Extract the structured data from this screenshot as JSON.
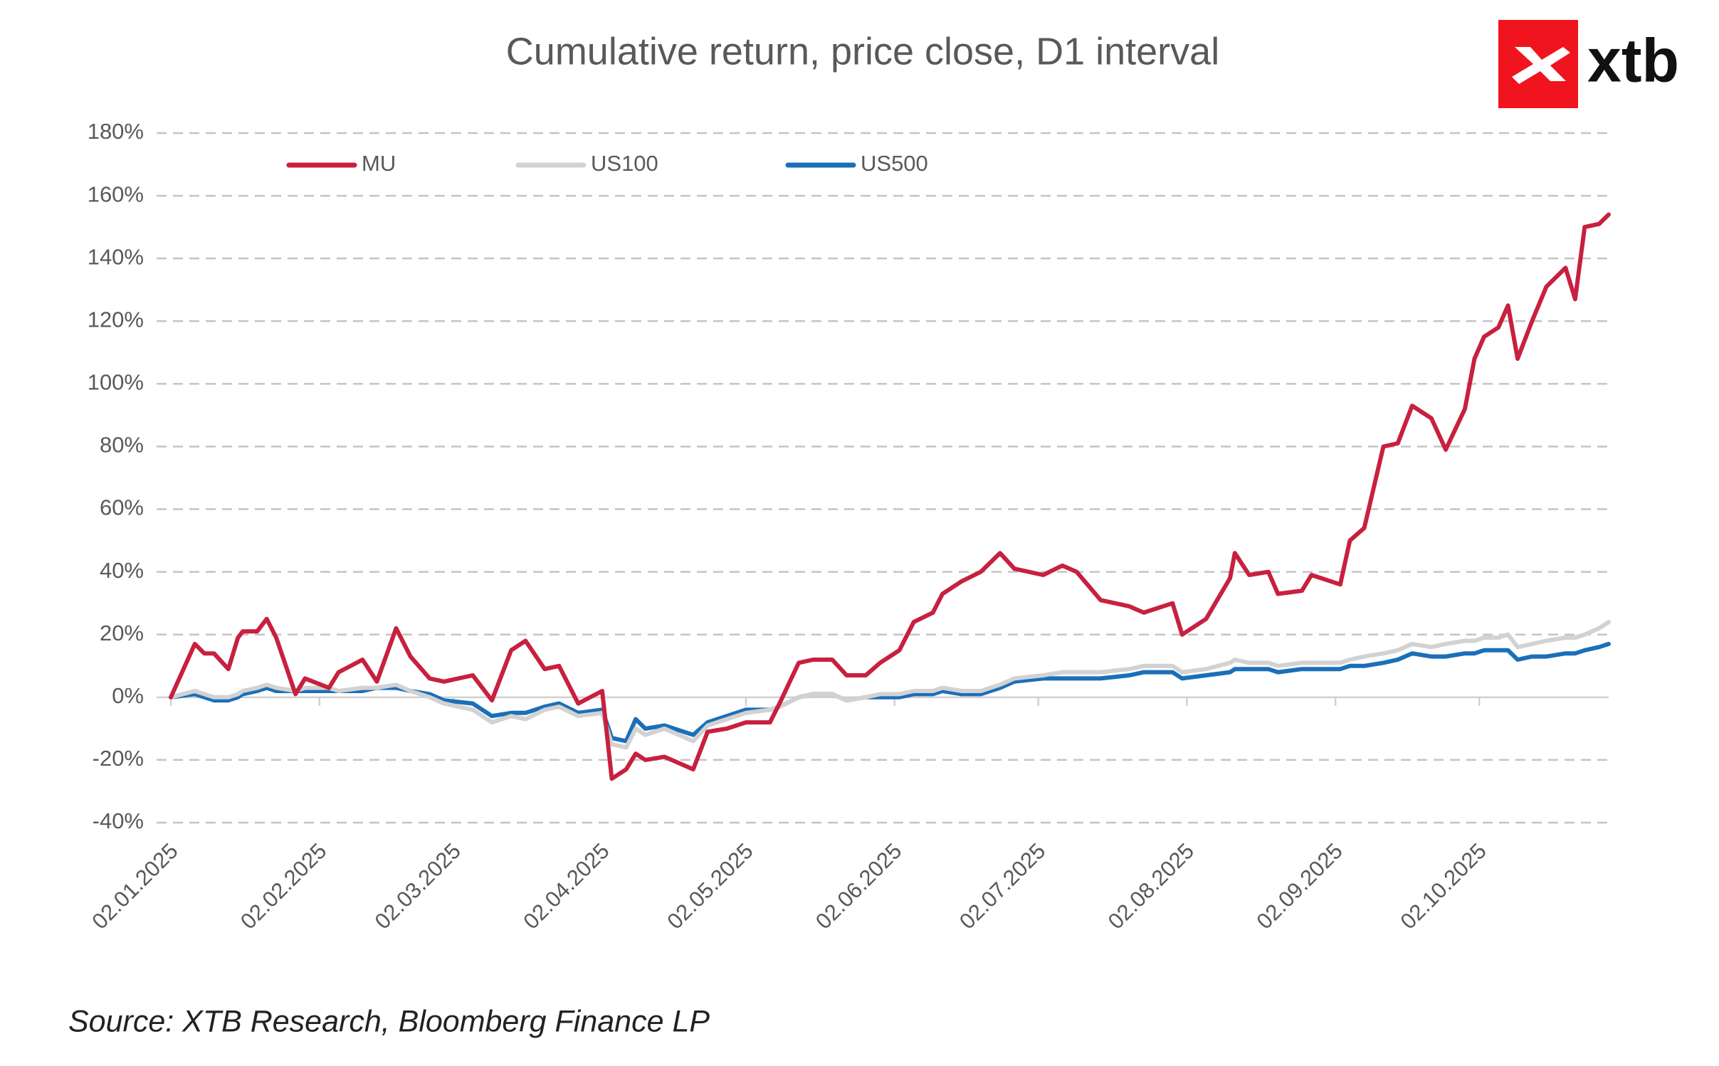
{
  "logo": "xtb",
  "chart_data": {
    "type": "line",
    "title": "Cumulative return, price close, D1 interval",
    "source": "Source: XTB Research, Bloomberg Finance LP",
    "x": [
      "02.01.2025",
      "07.01.2025",
      "09.01.2025",
      "11.01.2025",
      "14.01.2025",
      "16.01.2025",
      "17.01.2025",
      "20.01.2025",
      "22.01.2025",
      "24.01.2025",
      "28.01.2025",
      "30.01.2025",
      "04.02.2025",
      "06.02.2025",
      "11.02.2025",
      "14.02.2025",
      "18.02.2025",
      "21.02.2025",
      "25.02.2025",
      "28.02.2025",
      "06.03.2025",
      "10.03.2025",
      "14.03.2025",
      "17.03.2025",
      "21.03.2025",
      "24.03.2025",
      "28.03.2025",
      "02.04.2025",
      "04.04.2025",
      "07.04.2025",
      "09.04.2025",
      "11.04.2025",
      "15.04.2025",
      "21.04.2025",
      "24.04.2025",
      "28.04.2025",
      "02.05.2025",
      "07.05.2025",
      "09.05.2025",
      "13.05.2025",
      "16.05.2025",
      "20.05.2025",
      "23.05.2025",
      "27.05.2025",
      "30.05.2025",
      "03.06.2025",
      "06.06.2025",
      "10.06.2025",
      "12.06.2025",
      "16.06.2025",
      "20.06.2025",
      "24.06.2025",
      "27.06.2025",
      "03.07.2025",
      "07.07.2025",
      "10.07.2025",
      "15.07.2025",
      "21.07.2025",
      "24.07.2025",
      "30.07.2025",
      "01.08.2025",
      "06.08.2025",
      "11.08.2025",
      "12.08.2025",
      "15.08.2025",
      "19.08.2025",
      "21.08.2025",
      "26.08.2025",
      "28.08.2025",
      "03.09.2025",
      "05.09.2025",
      "08.09.2025",
      "12.09.2025",
      "15.09.2025",
      "18.09.2025",
      "22.09.2025",
      "25.09.2025",
      "29.09.2025",
      "01.10.2025",
      "03.10.2025",
      "06.10.2025",
      "08.10.2025",
      "10.10.2025",
      "13.10.2025",
      "16.10.2025",
      "20.10.2025",
      "22.10.2025",
      "24.10.2025",
      "27.10.2025",
      "29.10.2025"
    ],
    "series": [
      {
        "name": "MU",
        "color": "#c8203f",
        "values": [
          0,
          17,
          14,
          14,
          9,
          19,
          21,
          21,
          25,
          19,
          1,
          6,
          3,
          8,
          12,
          5,
          22,
          13,
          6,
          5,
          7,
          -1,
          15,
          18,
          9,
          10,
          -2,
          2,
          -26,
          -23,
          -18,
          -20,
          -19,
          -23,
          -11,
          -10,
          -8,
          -8,
          -2,
          11,
          12,
          12,
          7,
          7,
          11,
          15,
          24,
          27,
          33,
          37,
          40,
          46,
          41,
          39,
          42,
          40,
          31,
          29,
          27,
          30,
          20,
          25,
          38,
          46,
          39,
          40,
          33,
          34,
          39,
          36,
          50,
          54,
          80,
          81,
          93,
          89,
          79,
          92,
          108,
          115,
          118,
          125,
          108,
          120,
          131,
          137,
          127,
          150,
          151,
          154
        ]
      },
      {
        "name": "US100",
        "color": "#d2d2d2",
        "values": [
          0,
          2,
          1,
          0,
          0,
          1,
          2,
          3,
          4,
          3,
          2,
          3,
          3,
          2,
          3,
          3,
          4,
          2,
          0,
          -2,
          -4,
          -8,
          -6,
          -7,
          -4,
          -3,
          -6,
          -5,
          -15,
          -16,
          -10,
          -12,
          -10,
          -14,
          -9,
          -7,
          -5,
          -4,
          -3,
          0,
          1,
          1,
          -1,
          0,
          1,
          1,
          2,
          2,
          3,
          2,
          2,
          4,
          6,
          7,
          8,
          8,
          8,
          9,
          10,
          10,
          8,
          9,
          11,
          12,
          11,
          11,
          10,
          11,
          11,
          11,
          12,
          13,
          14,
          15,
          17,
          16,
          17,
          18,
          18,
          19,
          19,
          20,
          16,
          17,
          18,
          19,
          19,
          20,
          22,
          24
        ]
      },
      {
        "name": "US500",
        "color": "#1a6fb8",
        "values": [
          0,
          1,
          0,
          -1,
          -1,
          0,
          1,
          2,
          3,
          2,
          2,
          2,
          2,
          2,
          2,
          3,
          3,
          2,
          1,
          -1,
          -2,
          -6,
          -5,
          -5,
          -3,
          -2,
          -5,
          -4,
          -13,
          -14,
          -7,
          -10,
          -9,
          -12,
          -8,
          -6,
          -4,
          -4,
          -3,
          0,
          1,
          1,
          -1,
          0,
          0,
          0,
          1,
          1,
          2,
          1,
          1,
          3,
          5,
          6,
          6,
          6,
          6,
          7,
          8,
          8,
          6,
          7,
          8,
          9,
          9,
          9,
          8,
          9,
          9,
          9,
          10,
          10,
          11,
          12,
          14,
          13,
          13,
          14,
          14,
          15,
          15,
          15,
          12,
          13,
          13,
          14,
          14,
          15,
          16,
          17
        ]
      }
    ],
    "xlim": [
      "02.01.2025",
      "29.10.2025"
    ],
    "xticks": [
      "02.01.2025",
      "02.02.2025",
      "02.03.2025",
      "02.04.2025",
      "02.05.2025",
      "02.06.2025",
      "02.07.2025",
      "02.08.2025",
      "02.09.2025",
      "02.10.2025"
    ],
    "ylim": [
      -40,
      180
    ],
    "yticks": [
      {
        "value": -40,
        "label": "-40%"
      },
      {
        "value": -20,
        "label": "-20%"
      },
      {
        "value": 0,
        "label": "0%"
      },
      {
        "value": 20,
        "label": "20%"
      },
      {
        "value": 40,
        "label": "40%"
      },
      {
        "value": 60,
        "label": "60%"
      },
      {
        "value": 80,
        "label": "80%"
      },
      {
        "value": 100,
        "label": "100%"
      },
      {
        "value": 120,
        "label": "120%"
      },
      {
        "value": 140,
        "label": "140%"
      },
      {
        "value": 160,
        "label": "160%"
      },
      {
        "value": 180,
        "label": "180%"
      }
    ],
    "grid": true,
    "legend": "top"
  }
}
